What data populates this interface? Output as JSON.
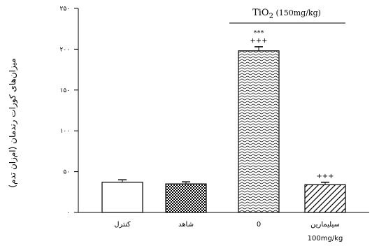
{
  "chart_data": {
    "type": "bar",
    "ylabel": "میزان‌های کورات رندمان (ام‌زان تدم)",
    "yticks": [
      "۰",
      "۵۰",
      "۱۰۰",
      "۱۵۰",
      "۲۰۰",
      "۲۵۰"
    ],
    "ylim": [
      0,
      250
    ],
    "grid": false,
    "categories": [
      "کنترل",
      "شاهد",
      "0",
      "سیلیمارین"
    ],
    "category_sublabels": [
      "",
      "",
      "",
      "100mg/kg"
    ],
    "values": [
      37,
      35,
      198,
      34
    ],
    "errors": [
      3,
      2.5,
      5,
      3
    ],
    "fills": [
      "#ffffff",
      "checker",
      "wave",
      "diagonal"
    ],
    "bar_annotations": [
      "",
      "",
      "***\n+++",
      "+++"
    ],
    "group_label": "TiO2 (150mg/kg)",
    "group_label_parts": {
      "main": "TiO",
      "sub": "2",
      "rest": " (150mg/kg)"
    },
    "colors": {
      "bar_stroke": "#000000",
      "axis": "#000000",
      "text": "#000000"
    }
  }
}
